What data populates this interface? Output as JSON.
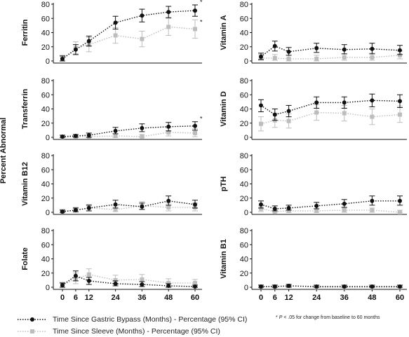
{
  "figure": {
    "ylabel": "Percent Abnormal",
    "footnote_marker": "*",
    "footnote_p": "P",
    "footnote_text": "< .05 for change from baseline to 60 months"
  },
  "legend": {
    "bypass_label": "Time Since Gastric Bypass (Months) - Percentage (95% CI)",
    "sleeve_label": "Time Since Sleeve (Months) - Percentage (95% CI)"
  },
  "colors": {
    "bypass": "#111111",
    "sleeve": "#bdbdbd"
  },
  "chart_data": [
    {
      "type": "line",
      "title": "Ferritin",
      "ylim": [
        0,
        80
      ],
      "y_ticks": [
        0,
        20,
        40,
        60,
        80
      ],
      "x": [
        0,
        6,
        12,
        24,
        36,
        48,
        60
      ],
      "x_ticks": [
        0,
        6,
        12,
        24,
        36,
        48,
        60
      ],
      "show_x_ticks": false,
      "series": [
        {
          "name": "bypass",
          "values": [
            3,
            16,
            28,
            54,
            64,
            69,
            71
          ],
          "lower": [
            0,
            9,
            21,
            45,
            55,
            61,
            63
          ],
          "upper": [
            7,
            23,
            35,
            63,
            73,
            77,
            79
          ]
        },
        {
          "name": "sleeve",
          "values": [
            3,
            18,
            23,
            36,
            31,
            48,
            45
          ],
          "lower": [
            0,
            10,
            13,
            25,
            20,
            36,
            32
          ],
          "upper": [
            8,
            27,
            33,
            47,
            42,
            60,
            58
          ]
        }
      ],
      "significance": {
        "bypass": "*",
        "sleeve": "*"
      }
    },
    {
      "type": "line",
      "title": "Vitamin A",
      "ylim": [
        0,
        80
      ],
      "y_ticks": [
        0,
        20,
        40,
        60,
        80
      ],
      "x": [
        0,
        6,
        12,
        24,
        36,
        48,
        60
      ],
      "x_ticks": [
        0,
        6,
        12,
        24,
        36,
        48,
        60
      ],
      "show_x_ticks": false,
      "series": [
        {
          "name": "bypass",
          "values": [
            6,
            21,
            13,
            18,
            16,
            17,
            15
          ],
          "lower": [
            2,
            14,
            8,
            12,
            10,
            10,
            9
          ],
          "upper": [
            11,
            28,
            19,
            25,
            23,
            25,
            22
          ]
        },
        {
          "name": "sleeve",
          "values": [
            4,
            4,
            3,
            3,
            5,
            5,
            8
          ],
          "lower": [
            1,
            1,
            0,
            0,
            1,
            1,
            3
          ],
          "upper": [
            9,
            9,
            8,
            8,
            10,
            11,
            14
          ]
        }
      ],
      "significance": {}
    },
    {
      "type": "line",
      "title": "Transferrin",
      "ylim": [
        0,
        80
      ],
      "y_ticks": [
        0,
        20,
        40,
        60,
        80
      ],
      "x": [
        0,
        6,
        12,
        24,
        36,
        48,
        60
      ],
      "x_ticks": [
        0,
        6,
        12,
        24,
        36,
        48,
        60
      ],
      "show_x_ticks": false,
      "series": [
        {
          "name": "bypass",
          "values": [
            1,
            2,
            3,
            9,
            13,
            15,
            16
          ],
          "lower": [
            0,
            0,
            0,
            5,
            8,
            9,
            10
          ],
          "upper": [
            3,
            4,
            6,
            14,
            19,
            21,
            22
          ]
        },
        {
          "name": "sleeve",
          "values": [
            0,
            1,
            1,
            2,
            1,
            7,
            6
          ],
          "lower": [
            0,
            0,
            0,
            0,
            0,
            2,
            1
          ],
          "upper": [
            3,
            4,
            4,
            5,
            4,
            13,
            12
          ]
        }
      ],
      "significance": {
        "bypass": "*"
      }
    },
    {
      "type": "line",
      "title": "Vitamin D",
      "ylim": [
        0,
        80
      ],
      "y_ticks": [
        0,
        20,
        40,
        60,
        80
      ],
      "x": [
        0,
        6,
        12,
        24,
        36,
        48,
        60
      ],
      "x_ticks": [
        0,
        6,
        12,
        24,
        36,
        48,
        60
      ],
      "show_x_ticks": false,
      "series": [
        {
          "name": "bypass",
          "values": [
            45,
            32,
            37,
            49,
            49,
            52,
            51
          ],
          "lower": [
            36,
            24,
            29,
            41,
            41,
            43,
            42
          ],
          "upper": [
            53,
            40,
            45,
            57,
            57,
            61,
            60
          ]
        },
        {
          "name": "sleeve",
          "values": [
            19,
            24,
            23,
            35,
            34,
            29,
            32
          ],
          "lower": [
            9,
            14,
            13,
            24,
            23,
            18,
            21
          ],
          "upper": [
            29,
            34,
            33,
            46,
            45,
            40,
            44
          ]
        }
      ],
      "significance": {}
    },
    {
      "type": "line",
      "title": "Vitamin B12",
      "ylim": [
        0,
        80
      ],
      "y_ticks": [
        0,
        20,
        40,
        60,
        80
      ],
      "x": [
        0,
        6,
        12,
        24,
        36,
        48,
        60
      ],
      "x_ticks": [
        0,
        6,
        12,
        24,
        36,
        48,
        60
      ],
      "show_x_ticks": false,
      "series": [
        {
          "name": "bypass",
          "values": [
            1,
            3,
            6,
            11,
            8,
            16,
            11
          ],
          "lower": [
            0,
            1,
            2,
            6,
            4,
            10,
            6
          ],
          "upper": [
            3,
            6,
            10,
            17,
            13,
            23,
            17
          ]
        },
        {
          "name": "sleeve",
          "values": [
            1,
            3,
            6,
            4,
            9,
            7,
            7
          ],
          "lower": [
            0,
            0,
            2,
            1,
            4,
            2,
            2
          ],
          "upper": [
            4,
            7,
            11,
            9,
            15,
            13,
            13
          ]
        }
      ],
      "significance": {}
    },
    {
      "type": "line",
      "title": "pTH",
      "ylim": [
        0,
        80
      ],
      "y_ticks": [
        0,
        20,
        40,
        60,
        80
      ],
      "x": [
        0,
        6,
        12,
        24,
        36,
        48,
        60
      ],
      "x_ticks": [
        0,
        6,
        12,
        24,
        36,
        48,
        60
      ],
      "show_x_ticks": false,
      "series": [
        {
          "name": "bypass",
          "values": [
            11,
            5,
            6,
            9,
            12,
            16,
            16
          ],
          "lower": [
            6,
            2,
            3,
            5,
            7,
            10,
            10
          ],
          "upper": [
            16,
            9,
            10,
            14,
            18,
            23,
            23
          ]
        },
        {
          "name": "sleeve",
          "values": [
            5,
            1,
            2,
            2,
            3,
            3,
            0
          ],
          "lower": [
            1,
            0,
            0,
            0,
            0,
            0,
            0
          ],
          "upper": [
            9,
            4,
            5,
            5,
            6,
            6,
            3
          ]
        }
      ],
      "significance": {}
    },
    {
      "type": "line",
      "title": "Folate",
      "ylim": [
        0,
        80
      ],
      "y_ticks": [
        0,
        20,
        40,
        60,
        80
      ],
      "x": [
        0,
        6,
        12,
        24,
        36,
        48,
        60
      ],
      "x_ticks": [
        0,
        6,
        12,
        24,
        36,
        48,
        60
      ],
      "show_x_ticks": true,
      "series": [
        {
          "name": "bypass",
          "values": [
            3,
            16,
            9,
            5,
            4,
            2,
            1
          ],
          "lower": [
            0,
            9,
            4,
            2,
            1,
            0,
            0
          ],
          "upper": [
            6,
            23,
            14,
            9,
            8,
            5,
            3
          ]
        },
        {
          "name": "sleeve",
          "values": [
            3,
            12,
            18,
            10,
            11,
            6,
            6
          ],
          "lower": [
            0,
            5,
            10,
            4,
            4,
            1,
            1
          ],
          "upper": [
            7,
            20,
            26,
            17,
            18,
            12,
            11
          ]
        }
      ],
      "significance": {}
    },
    {
      "type": "line",
      "title": "Vitamin B1",
      "ylim": [
        0,
        80
      ],
      "y_ticks": [
        0,
        20,
        40,
        60,
        80
      ],
      "x": [
        0,
        6,
        12,
        24,
        36,
        48,
        60
      ],
      "x_ticks": [
        0,
        6,
        12,
        24,
        36,
        48,
        60
      ],
      "show_x_ticks": true,
      "series": [
        {
          "name": "bypass",
          "values": [
            1,
            1,
            2,
            1,
            1,
            1,
            1
          ],
          "lower": [
            0,
            0,
            0,
            0,
            0,
            0,
            0
          ],
          "upper": [
            3,
            3,
            4,
            3,
            3,
            3,
            3
          ]
        },
        {
          "name": "sleeve",
          "values": [
            1,
            1,
            2,
            0,
            0,
            0,
            0
          ],
          "lower": [
            0,
            0,
            0,
            0,
            0,
            0,
            0
          ],
          "upper": [
            3,
            3,
            4,
            2,
            2,
            2,
            2
          ]
        }
      ],
      "significance": {}
    }
  ]
}
